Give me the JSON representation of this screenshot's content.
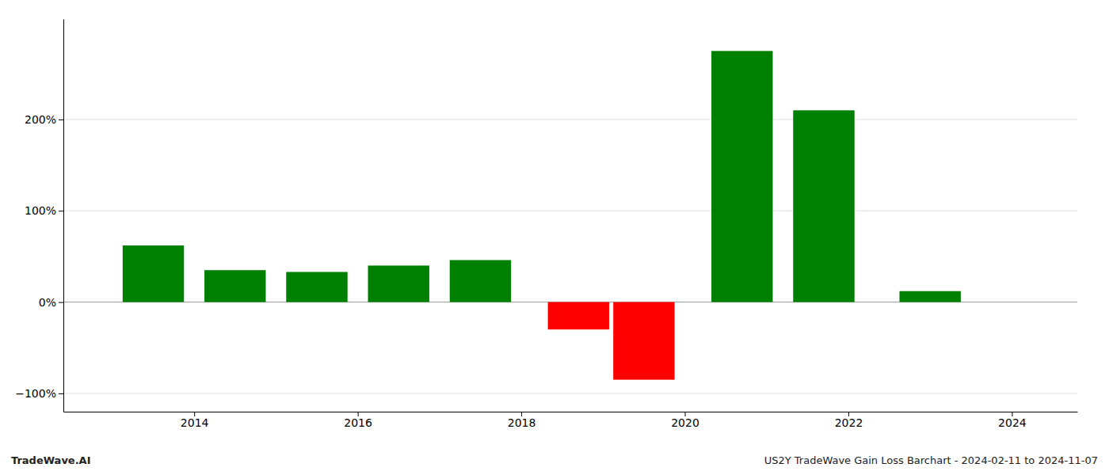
{
  "chart_data": {
    "type": "bar",
    "x": [
      2013.5,
      2014.5,
      2015.5,
      2016.5,
      2017.5,
      2018.7,
      2019.5,
      2020.7,
      2021.7,
      2023.0
    ],
    "values": [
      62,
      35,
      33,
      40,
      46,
      -30,
      -85,
      275,
      210,
      12
    ],
    "colors": [
      "#008000",
      "#008000",
      "#008000",
      "#008000",
      "#008000",
      "#ff0000",
      "#ff0000",
      "#008000",
      "#008000",
      "#008000"
    ],
    "xlim": [
      2012.4,
      2024.8
    ],
    "ylim": [
      -120,
      310
    ],
    "xticks": [
      2014,
      2016,
      2018,
      2020,
      2022,
      2024
    ],
    "yticks": [
      {
        "value": -100,
        "label": "−100%"
      },
      {
        "value": 0,
        "label": "0%"
      },
      {
        "value": 100,
        "label": "100%"
      },
      {
        "value": 200,
        "label": "200%"
      }
    ],
    "grid": true,
    "annotations": [
      "TradeWave.AI",
      "US2Y TradeWave Gain Loss Barchart - 2024-02-11 to 2024-11-07"
    ]
  }
}
